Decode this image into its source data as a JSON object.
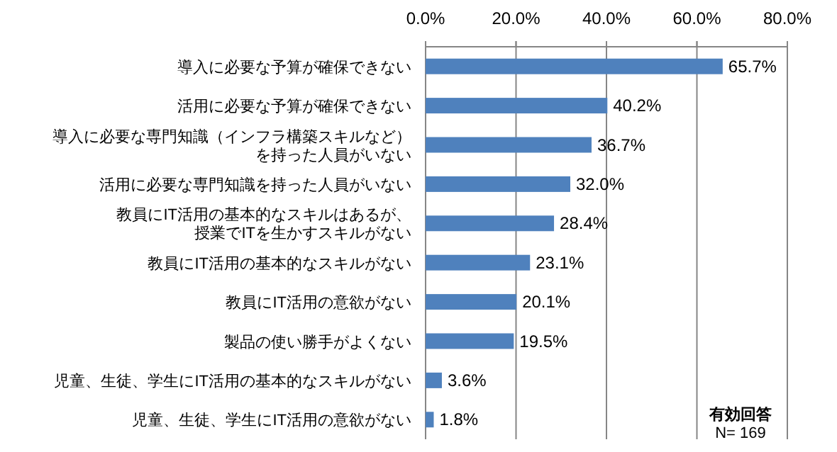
{
  "chart_data": {
    "type": "bar",
    "orientation": "horizontal",
    "categories": [
      "導入に必要な予算が確保できない",
      "活用に必要な予算が確保できない",
      "導入に必要な専門知識（インフラ構築スキルなど）を持った人員がいない",
      "活用に必要な専門知識を持った人員がいない",
      "教員にIT活用の基本的なスキルはあるが、授業でITを生かすスキルがない",
      "教員にIT活用の基本的なスキルがない",
      "教員にIT活用の意欲がない",
      "製品の使い勝手がよくない",
      "児童、生徒、学生にIT活用の基本的なスキルがない",
      "児童、生徒、学生にIT活用の意欲がない"
    ],
    "values": [
      65.7,
      40.2,
      36.7,
      32.0,
      28.4,
      23.1,
      20.1,
      19.5,
      3.6,
      1.8
    ],
    "value_labels": [
      "65.7%",
      "40.2%",
      "36.7%",
      "32.0%",
      "28.4%",
      "23.1%",
      "20.1%",
      "19.5%",
      "3.6%",
      "1.8%"
    ],
    "color": "#4f81bd",
    "xlim": [
      0,
      80
    ],
    "xticks": [
      {
        "value": 0,
        "label": "0.0%"
      },
      {
        "value": 20,
        "label": "20.0%"
      },
      {
        "value": 40,
        "label": "40.0%"
      },
      {
        "value": 60,
        "label": "60.0%"
      },
      {
        "value": 80,
        "label": "80.0%"
      }
    ],
    "grid": "x",
    "annotations": [
      "**有効回答**",
      "N= 169"
    ]
  }
}
